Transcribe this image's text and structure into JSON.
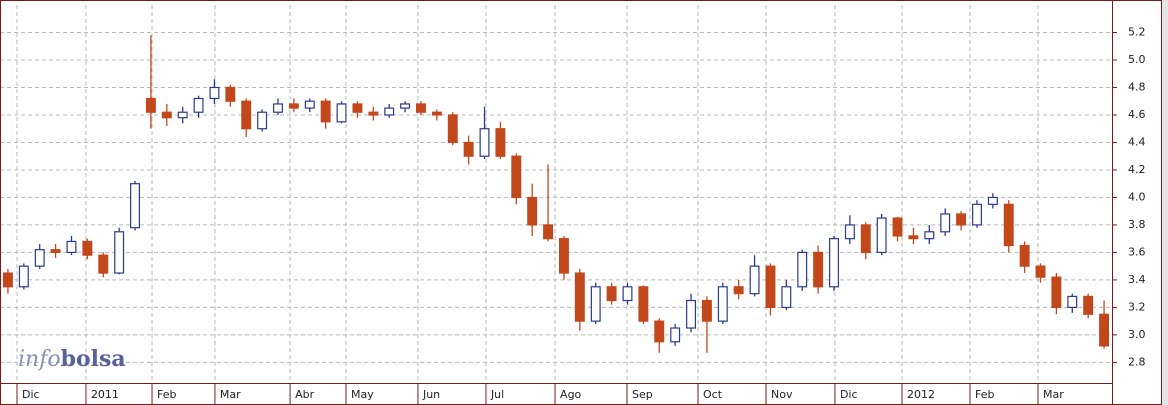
{
  "chart_data": {
    "type": "candlestick",
    "watermark": [
      "info",
      "bolsa"
    ],
    "up_color": "#2b3a8c",
    "down_color": "#c2481c",
    "grid": true,
    "xlim": [
      0,
      70
    ],
    "xticks": [
      {
        "value": 1.07,
        "label": "Dic"
      },
      {
        "value": 5.41,
        "label": "2011"
      },
      {
        "value": 9.57,
        "label": "Feb"
      },
      {
        "value": 13.53,
        "label": "Mar"
      },
      {
        "value": 18.26,
        "label": "Abr"
      },
      {
        "value": 21.78,
        "label": "May"
      },
      {
        "value": 26.31,
        "label": "Jun"
      },
      {
        "value": 30.59,
        "label": "Jul"
      },
      {
        "value": 34.94,
        "label": "Ago"
      },
      {
        "value": 39.47,
        "label": "Sep"
      },
      {
        "value": 43.94,
        "label": "Oct"
      },
      {
        "value": 48.22,
        "label": "Nov"
      },
      {
        "value": 52.56,
        "label": "Dic"
      },
      {
        "value": 56.78,
        "label": "2012"
      },
      {
        "value": 61.06,
        "label": "Feb"
      },
      {
        "value": 65.34,
        "label": "Mar"
      }
    ],
    "ylim": [
      2.65,
      5.4
    ],
    "yticks": [
      2.8,
      {
        "value": 3.0,
        "label": "3.0"
      },
      3.2,
      3.4,
      3.6,
      3.8,
      {
        "value": 4.0,
        "label": "4.0"
      },
      4.2,
      4.4,
      4.6,
      4.8,
      {
        "value": 5.0,
        "label": "5.0"
      },
      5.2
    ],
    "x": [
      0.5,
      1.5,
      2.5,
      3.5,
      4.5,
      5.5,
      6.5,
      7.5,
      8.5,
      9.5,
      10.5,
      11.5,
      12.5,
      13.5,
      14.5,
      15.5,
      16.5,
      17.5,
      18.5,
      19.5,
      20.5,
      21.5,
      22.5,
      23.5,
      24.5,
      25.5,
      26.5,
      27.5,
      28.5,
      29.5,
      30.5,
      31.5,
      32.5,
      33.5,
      34.5,
      35.5,
      36.5,
      37.5,
      38.5,
      39.5,
      40.5,
      41.5,
      42.5,
      43.5,
      44.5,
      45.5,
      46.5,
      47.5,
      48.5,
      49.5,
      50.5,
      51.5,
      52.5,
      53.5,
      54.5,
      55.5,
      56.5,
      57.5,
      58.5,
      59.5,
      60.5,
      61.5,
      62.5,
      63.5,
      64.5,
      65.5,
      66.5,
      67.5,
      68.5,
      69.5
    ],
    "open": [
      3.45,
      3.35,
      3.5,
      3.62,
      3.6,
      3.68,
      3.58,
      3.45,
      3.78,
      4.72,
      4.62,
      4.58,
      4.62,
      4.72,
      4.8,
      4.7,
      4.5,
      4.62,
      4.68,
      4.65,
      4.7,
      4.55,
      4.68,
      4.62,
      4.6,
      4.65,
      4.68,
      4.62,
      4.6,
      4.4,
      4.3,
      4.5,
      4.3,
      4.0,
      3.8,
      3.7,
      3.45,
      3.1,
      3.35,
      3.25,
      3.35,
      3.1,
      2.95,
      3.05,
      3.25,
      3.1,
      3.35,
      3.3,
      3.5,
      3.2,
      3.35,
      3.6,
      3.35,
      3.7,
      3.8,
      3.6,
      3.85,
      3.72,
      3.7,
      3.75,
      3.88,
      3.8,
      3.95,
      3.95,
      3.65,
      3.5,
      3.42,
      3.2,
      3.28,
      3.15
    ],
    "high": [
      3.48,
      3.52,
      3.66,
      3.66,
      3.72,
      3.7,
      3.6,
      3.78,
      4.12,
      5.18,
      4.68,
      4.66,
      4.74,
      4.86,
      4.82,
      4.72,
      4.64,
      4.72,
      4.72,
      4.72,
      4.72,
      4.7,
      4.7,
      4.66,
      4.68,
      4.7,
      4.7,
      4.64,
      4.62,
      4.45,
      4.66,
      4.55,
      4.32,
      4.1,
      4.24,
      3.72,
      3.48,
      3.38,
      3.38,
      3.38,
      3.36,
      3.12,
      3.08,
      3.3,
      3.28,
      3.38,
      3.4,
      3.58,
      3.52,
      3.4,
      3.62,
      3.65,
      3.72,
      3.87,
      3.82,
      3.88,
      3.86,
      3.78,
      3.8,
      3.92,
      3.9,
      3.98,
      4.03,
      3.98,
      3.68,
      3.52,
      3.45,
      3.3,
      3.3,
      3.25
    ],
    "low": [
      3.3,
      3.33,
      3.48,
      3.56,
      3.58,
      3.55,
      3.42,
      3.44,
      3.76,
      4.5,
      4.52,
      4.54,
      4.58,
      4.68,
      4.66,
      4.44,
      4.48,
      4.6,
      4.62,
      4.62,
      4.5,
      4.54,
      4.58,
      4.56,
      4.58,
      4.62,
      4.6,
      4.56,
      4.38,
      4.24,
      4.28,
      4.28,
      3.95,
      3.72,
      3.68,
      3.4,
      3.03,
      3.08,
      3.22,
      3.22,
      3.08,
      2.87,
      2.92,
      3.02,
      2.87,
      3.08,
      3.26,
      3.28,
      3.14,
      3.18,
      3.32,
      3.3,
      3.32,
      3.66,
      3.55,
      3.58,
      3.68,
      3.66,
      3.66,
      3.72,
      3.76,
      3.78,
      3.92,
      3.6,
      3.45,
      3.38,
      3.15,
      3.16,
      3.12,
      2.9
    ],
    "close": [
      3.35,
      3.5,
      3.62,
      3.6,
      3.68,
      3.58,
      3.45,
      3.75,
      4.1,
      4.62,
      4.58,
      4.62,
      4.72,
      4.8,
      4.7,
      4.5,
      4.62,
      4.68,
      4.65,
      4.7,
      4.55,
      4.68,
      4.62,
      4.6,
      4.65,
      4.68,
      4.62,
      4.6,
      4.4,
      4.3,
      4.5,
      4.3,
      4.0,
      3.8,
      3.7,
      3.45,
      3.1,
      3.35,
      3.25,
      3.35,
      3.1,
      2.95,
      3.05,
      3.25,
      3.1,
      3.35,
      3.3,
      3.5,
      3.2,
      3.35,
      3.6,
      3.35,
      3.7,
      3.8,
      3.6,
      3.85,
      3.72,
      3.7,
      3.75,
      3.88,
      3.8,
      3.95,
      4.0,
      3.65,
      3.5,
      3.42,
      3.2,
      3.28,
      3.15,
      2.92
    ]
  }
}
